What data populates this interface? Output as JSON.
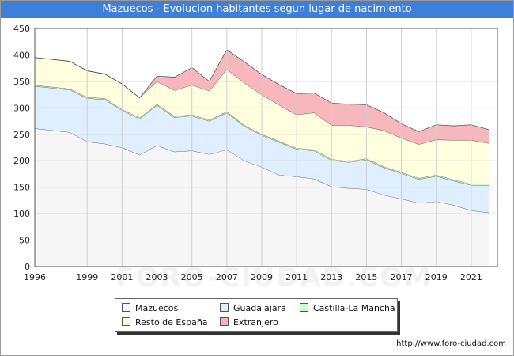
{
  "title": "Mazuecos - Evolucion habitantes segun lugar de nacimiento",
  "watermark": "FORO-CIUDAD.COM",
  "source_url": "http://www.foro-ciudad.com",
  "colors": {
    "title_bg": "#3d7fd9",
    "Mazuecos": "#f5f5f5",
    "Guadalajara": "#ddeeff",
    "Castilla-La Mancha": "#ccffcc",
    "Resto de España": "#ffffdd",
    "Extranjero": "#f7b3b8"
  },
  "legend": {
    "items": [
      {
        "label": "Mazuecos",
        "color": "#f5f5f5"
      },
      {
        "label": "Guadalajara",
        "color": "#ddeeff"
      },
      {
        "label": "Castilla-La Mancha",
        "color": "#ccffcc"
      },
      {
        "label": "Resto de España",
        "color": "#ffffdd"
      },
      {
        "label": "Extranjero",
        "color": "#f7b3b8"
      }
    ]
  },
  "chart_data": {
    "type": "area",
    "stacked": true,
    "title": "Mazuecos - Evolucion habitantes segun lugar de nacimiento",
    "xlabel": "",
    "ylabel": "",
    "x": [
      1996,
      1998,
      1999,
      2000,
      2001,
      2002,
      2003,
      2004,
      2005,
      2006,
      2007,
      2008,
      2009,
      2010,
      2011,
      2012,
      2013,
      2014,
      2015,
      2016,
      2017,
      2018,
      2019,
      2020,
      2021,
      2022
    ],
    "xticks": [
      1996,
      1999,
      2001,
      2003,
      2005,
      2007,
      2009,
      2011,
      2013,
      2015,
      2017,
      2019,
      2021
    ],
    "ylim": [
      0,
      450
    ],
    "yticks": [
      0,
      50,
      100,
      150,
      200,
      250,
      300,
      350,
      400,
      450
    ],
    "grid": true,
    "legend_position": "bottom",
    "series": [
      {
        "name": "Mazuecos",
        "values": [
          261,
          254,
          236,
          232,
          225,
          211,
          229,
          217,
          219,
          212,
          221,
          200,
          188,
          173,
          170,
          166,
          151,
          148,
          146,
          135,
          128,
          120,
          123,
          116,
          106,
          102
        ]
      },
      {
        "name": "Guadalajara",
        "values": [
          80,
          80,
          82,
          84,
          70,
          68,
          76,
          65,
          66,
          63,
          70,
          65,
          60,
          62,
          52,
          53,
          50,
          49,
          56,
          52,
          48,
          45,
          48,
          46,
          48,
          52
        ]
      },
      {
        "name": "Castilla-La Mancha",
        "values": [
          2,
          2,
          2,
          2,
          2,
          2,
          2,
          2,
          2,
          2,
          2,
          2,
          2,
          2,
          2,
          2,
          2,
          2,
          2,
          2,
          2,
          2,
          2,
          2,
          2,
          2
        ]
      },
      {
        "name": "Resto de España",
        "values": [
          52,
          52,
          50,
          46,
          48,
          38,
          43,
          49,
          56,
          55,
          80,
          80,
          75,
          68,
          63,
          70,
          64,
          68,
          60,
          68,
          65,
          64,
          67,
          75,
          83,
          77
        ]
      },
      {
        "name": "Extranjero",
        "values": [
          0,
          0,
          0,
          0,
          0,
          0,
          10,
          25,
          33,
          18,
          37,
          40,
          38,
          39,
          40,
          37,
          42,
          40,
          42,
          34,
          27,
          24,
          28,
          27,
          29,
          26
        ]
      }
    ]
  }
}
